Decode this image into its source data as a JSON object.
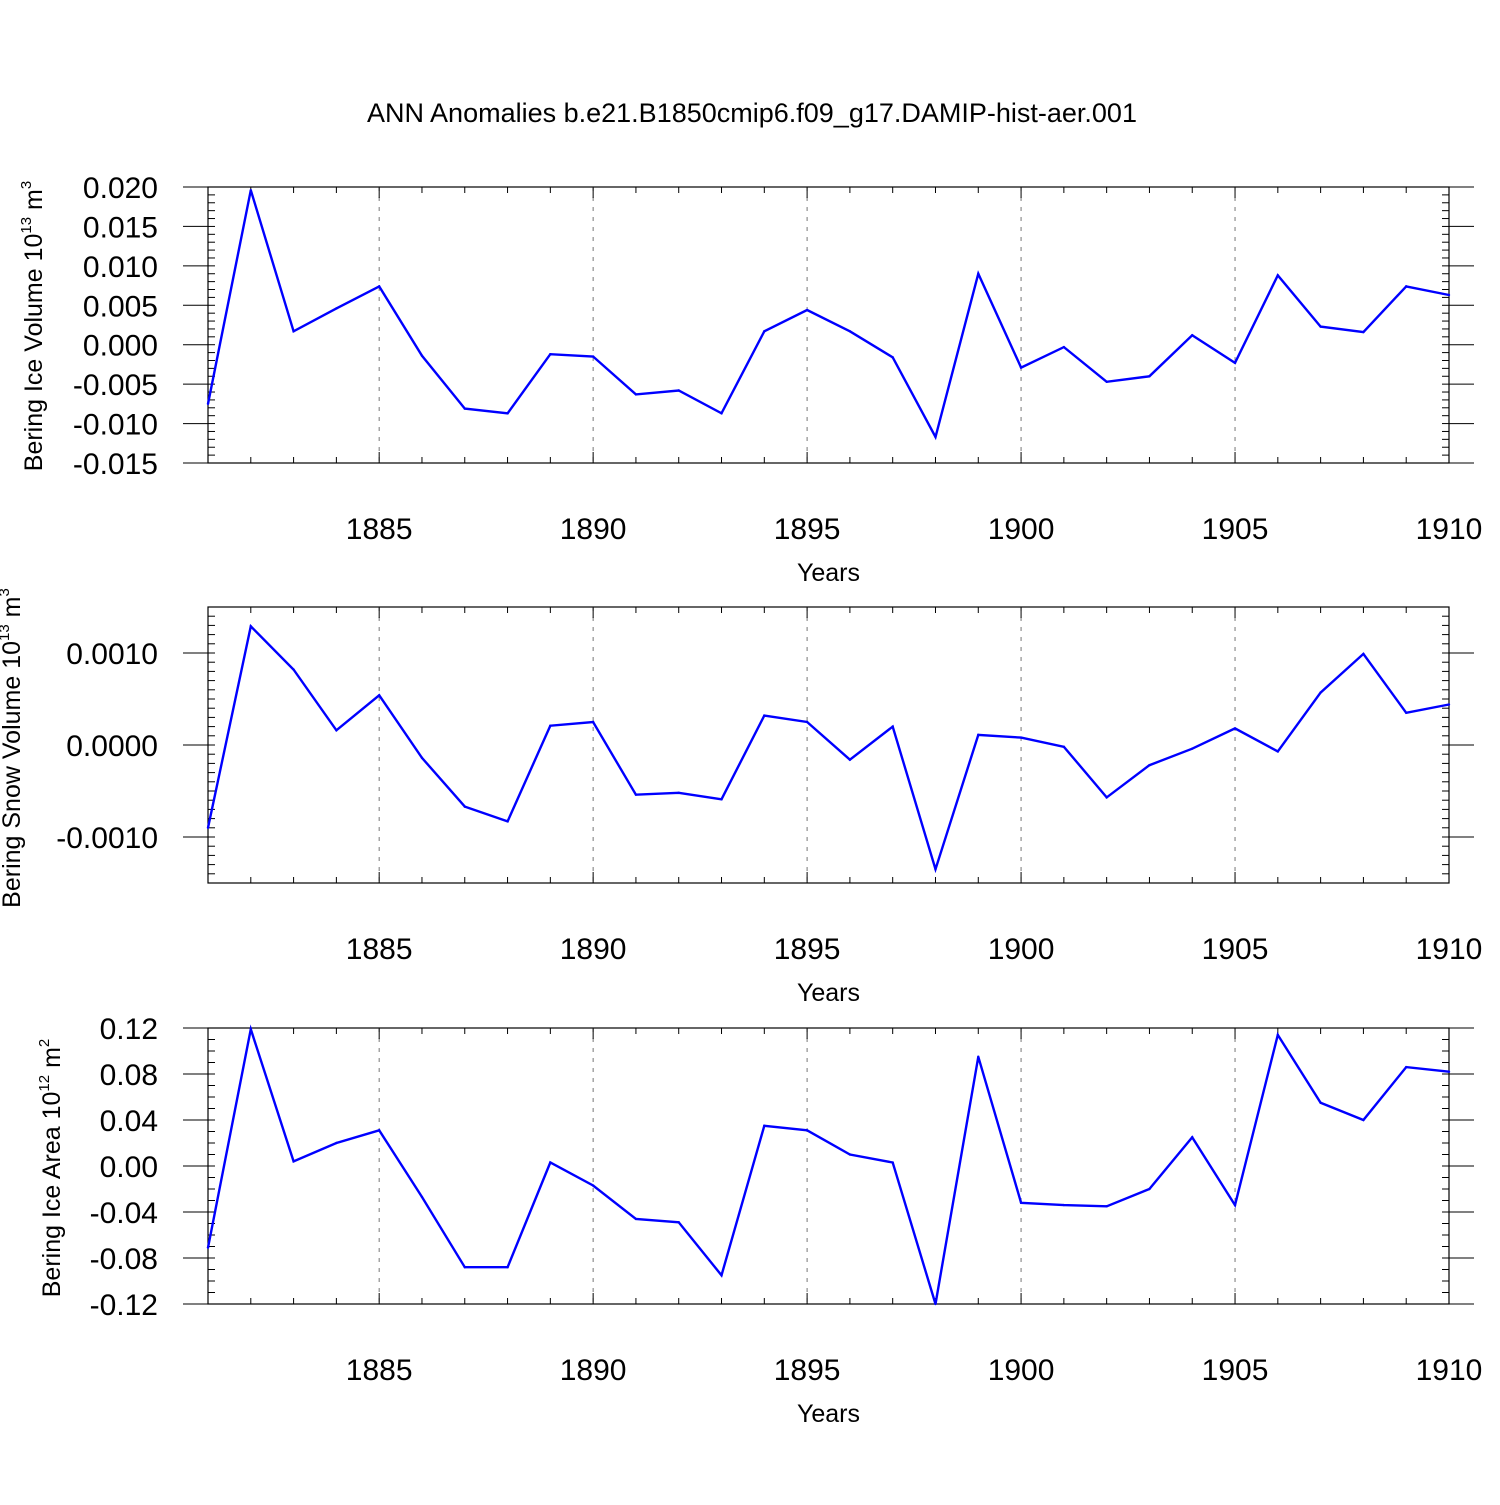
{
  "title": "ANN Anomalies b.e21.B1850cmip6.f09_g17.DAMIP-hist-aer.001",
  "chart_data": [
    {
      "type": "line",
      "xlabel": "Years",
      "ylabel": {
        "text": "Bering Ice Volume 10",
        "sup": "13",
        "unit": " m",
        "unit_sup": "3"
      },
      "xlim": [
        1881,
        1910
      ],
      "ylim": [
        -0.015,
        0.02
      ],
      "x_ticks": [
        1885,
        1890,
        1895,
        1900,
        1905,
        1910
      ],
      "y_ticks": [
        "-0.015",
        "-0.010",
        "-0.005",
        "0.000",
        "0.005",
        "0.010",
        "0.015",
        "0.020"
      ],
      "grid": "dashed vertical at major x ticks",
      "color": "#0000ff",
      "x": [
        1881,
        1882,
        1883,
        1884,
        1885,
        1886,
        1887,
        1888,
        1889,
        1890,
        1891,
        1892,
        1893,
        1894,
        1895,
        1896,
        1897,
        1898,
        1899,
        1900,
        1901,
        1902,
        1903,
        1904,
        1905,
        1906,
        1907,
        1908,
        1909,
        1910
      ],
      "values": [
        -0.0075,
        0.0196,
        0.0017,
        0.0046,
        0.0074,
        -0.0014,
        -0.0081,
        -0.0087,
        -0.0012,
        -0.0015,
        -0.0063,
        -0.0058,
        -0.0087,
        0.0017,
        0.0044,
        0.0017,
        -0.0016,
        -0.0117,
        0.009,
        -0.0029,
        -0.0003,
        -0.0047,
        -0.004,
        0.0012,
        -0.0023,
        0.0088,
        0.0023,
        0.0016,
        0.0074,
        0.0063
      ]
    },
    {
      "type": "line",
      "xlabel": "Years",
      "ylabel": {
        "text": "Bering Snow Volume 10",
        "sup": "13",
        "unit": " m",
        "unit_sup": "3"
      },
      "xlim": [
        1881,
        1910
      ],
      "ylim": [
        -0.0015,
        0.0015
      ],
      "x_ticks": [
        1885,
        1890,
        1895,
        1900,
        1905,
        1910
      ],
      "y_ticks": [
        "-0.0010",
        "0.0000",
        "0.0010"
      ],
      "grid": "dashed vertical at major x ticks",
      "color": "#0000ff",
      "x": [
        1881,
        1882,
        1883,
        1884,
        1885,
        1886,
        1887,
        1888,
        1889,
        1890,
        1891,
        1892,
        1893,
        1894,
        1895,
        1896,
        1897,
        1898,
        1899,
        1900,
        1901,
        1902,
        1903,
        1904,
        1905,
        1906,
        1907,
        1908,
        1909,
        1910
      ],
      "values": [
        -0.0009,
        0.00129,
        0.00082,
        0.00016,
        0.00054,
        -0.00014,
        -0.00067,
        -0.00083,
        0.00021,
        0.00025,
        -0.00054,
        -0.00052,
        -0.00059,
        0.00032,
        0.00025,
        -0.00016,
        0.0002,
        -0.00135,
        0.00011,
        8e-05,
        -2e-05,
        -0.00057,
        -0.00022,
        -4e-05,
        0.00018,
        -7e-05,
        0.00057,
        0.00099,
        0.00035,
        0.00044
      ]
    },
    {
      "type": "line",
      "xlabel": "Years",
      "ylabel": {
        "text": "Bering Ice Area 10",
        "sup": "12",
        "unit": " m",
        "unit_sup": "2"
      },
      "xlim": [
        1881,
        1910
      ],
      "ylim": [
        -0.12,
        0.12
      ],
      "x_ticks": [
        1885,
        1890,
        1895,
        1900,
        1905,
        1910
      ],
      "y_ticks": [
        "-0.12",
        "-0.08",
        "-0.04",
        "0.00",
        "0.04",
        "0.08",
        "0.12"
      ],
      "grid": "dashed vertical at major x ticks",
      "color": "#0000ff",
      "x": [
        1881,
        1882,
        1883,
        1884,
        1885,
        1886,
        1887,
        1888,
        1889,
        1890,
        1891,
        1892,
        1893,
        1894,
        1895,
        1896,
        1897,
        1898,
        1899,
        1900,
        1901,
        1902,
        1903,
        1904,
        1905,
        1906,
        1907,
        1908,
        1909,
        1910
      ],
      "values": [
        -0.071,
        0.119,
        0.004,
        0.02,
        0.031,
        -0.027,
        -0.088,
        -0.088,
        0.003,
        -0.017,
        -0.046,
        -0.049,
        -0.095,
        0.035,
        0.031,
        0.01,
        0.003,
        -0.12,
        0.095,
        -0.032,
        -0.034,
        -0.035,
        -0.02,
        0.025,
        -0.034,
        0.114,
        0.055,
        0.04,
        0.086,
        0.082
      ]
    }
  ]
}
